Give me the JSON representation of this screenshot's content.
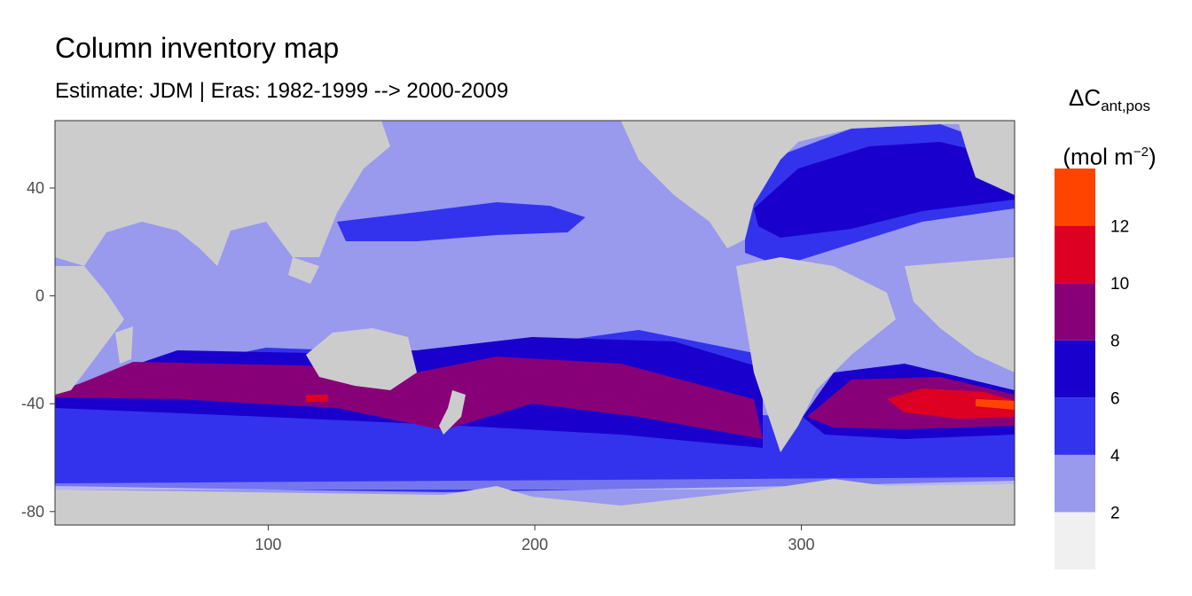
{
  "title": "Column inventory map",
  "subtitle": "Estimate: JDM  | Eras: 1982-1999 --> 2000-2009",
  "legend": {
    "symbol": "ΔC",
    "subscript": "ant,pos",
    "unit_open": "(mol m",
    "unit_sup": "−2",
    "unit_close": ")"
  },
  "chart_data": {
    "type": "heatmap",
    "title": "Column inventory map",
    "subtitle": "Estimate: JDM  | Eras: 1982-1999 --> 2000-2009",
    "xlabel": "",
    "ylabel": "",
    "xlim": [
      20,
      380
    ],
    "ylim": [
      -85,
      65
    ],
    "x_ticks": [
      100,
      200,
      300
    ],
    "y_ticks": [
      40,
      0,
      -40,
      -80
    ],
    "land_color": "#cccccc",
    "breaks": [
      2,
      4,
      6,
      8,
      10,
      12
    ],
    "legend_labels": [
      "2",
      "4",
      "6",
      "8",
      "10",
      "12"
    ],
    "color_bins": [
      {
        "range": [
          0,
          2
        ],
        "color": "#f0f0f0"
      },
      {
        "range": [
          2,
          4
        ],
        "color": "#9999ee"
      },
      {
        "range": [
          4,
          6
        ],
        "color": "#3333ee"
      },
      {
        "range": [
          6,
          8
        ],
        "color": "#1a00cc"
      },
      {
        "range": [
          8,
          10
        ],
        "color": "#880077"
      },
      {
        "range": [
          10,
          12
        ],
        "color": "#dd0022"
      },
      {
        "range": [
          12,
          14
        ],
        "color": "#ff4400"
      }
    ],
    "legend_placement": "right",
    "grid": false
  }
}
